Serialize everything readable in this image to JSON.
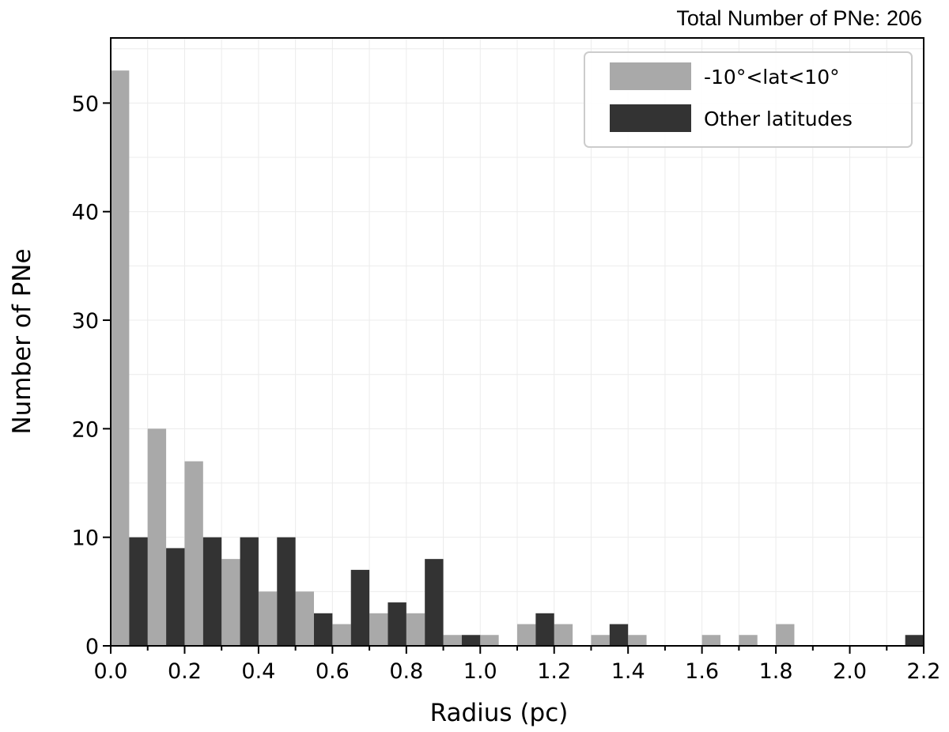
{
  "chart_data": {
    "type": "bar",
    "title": "",
    "annotation": "Total Number of PNe: 206",
    "xlabel": "Radius (pc)",
    "ylabel": "Number of PNe",
    "xlim": [
      0.0,
      2.2
    ],
    "ylim": [
      0,
      56
    ],
    "xticks": [
      "0.0",
      "0.2",
      "0.4",
      "0.6",
      "0.8",
      "1.0",
      "1.2",
      "1.4",
      "1.6",
      "1.8",
      "2.0",
      "2.2"
    ],
    "yticks": [
      "0",
      "10",
      "20",
      "30",
      "40",
      "50"
    ],
    "bin_width": 0.1,
    "bin_starts": [
      0.0,
      0.1,
      0.2,
      0.3,
      0.4,
      0.5,
      0.6,
      0.7,
      0.8,
      0.9,
      1.0,
      1.1,
      1.2,
      1.3,
      1.4,
      1.5,
      1.6,
      1.7,
      1.8,
      1.9,
      2.0,
      2.1
    ],
    "grid": true,
    "legend_position": "top-right",
    "series": [
      {
        "name": "-10°<lat<10°",
        "color": "#a9a9a9",
        "values": [
          53,
          20,
          17,
          8,
          5,
          5,
          2,
          3,
          3,
          1,
          1,
          2,
          2,
          1,
          1,
          0,
          1,
          1,
          2,
          0,
          0,
          0
        ]
      },
      {
        "name": "Other latitudes",
        "color": "#333333",
        "values": [
          10,
          9,
          10,
          10,
          10,
          3,
          7,
          4,
          8,
          1,
          0,
          3,
          0,
          2,
          0,
          0,
          0,
          0,
          0,
          0,
          0,
          1
        ]
      }
    ]
  }
}
